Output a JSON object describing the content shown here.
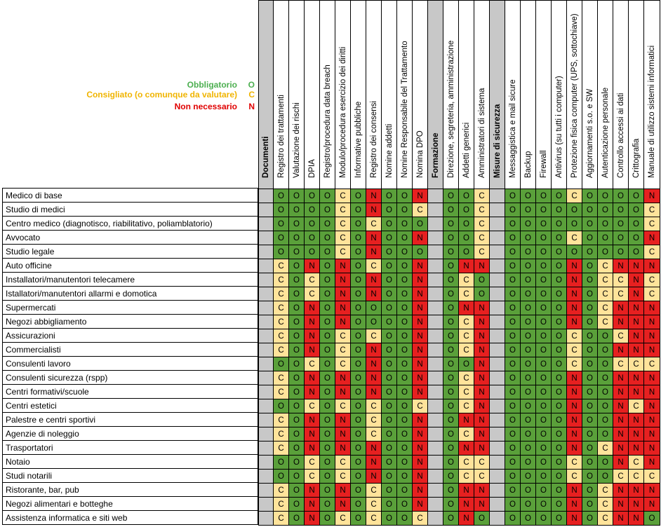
{
  "legend": [
    {
      "text": "Obbligatorio",
      "code": "O",
      "color": "#4caf50"
    },
    {
      "text": "Consigliato (o comunque da valutare)",
      "code": "C",
      "color": "#f0b400"
    },
    {
      "text": "Non necessario",
      "code": "N",
      "color": "#e00000"
    }
  ],
  "colors": {
    "O": "#5aa03a",
    "C": "#ffe39a",
    "N": "#e62020",
    "section": "#c8c8c8"
  },
  "columns": [
    {
      "label": "Documenti",
      "section": true
    },
    {
      "label": "Registro dei trattamenti"
    },
    {
      "label": "Valutazione dei rischi"
    },
    {
      "label": "DPIA"
    },
    {
      "label": "Registro/procedura data breach"
    },
    {
      "label": "Modulo/procedura esercizio dei diritti"
    },
    {
      "label": "Informative pubbliche"
    },
    {
      "label": "Registro dei consensi"
    },
    {
      "label": "Nomine addetti"
    },
    {
      "label": "Nomine Responsabile del Trattamento"
    },
    {
      "label": "Nomina DPO"
    },
    {
      "label": "Formazione",
      "section": true
    },
    {
      "label": "Direzione, segreteria, amministrazione"
    },
    {
      "label": "Addetti generici"
    },
    {
      "label": "Amministratori di sistema"
    },
    {
      "label": "Misure di sicurezza",
      "section": true
    },
    {
      "label": "Messaggistica e mail sicure"
    },
    {
      "label": "Backup"
    },
    {
      "label": "Firewall"
    },
    {
      "label": "Antivirus (su tutti i computer)"
    },
    {
      "label": "Protezione fisica computer (UPS, sottochiave)"
    },
    {
      "label": "Aggiornamenti s.o. e SW"
    },
    {
      "label": "Autenticazione personale"
    },
    {
      "label": "Controllo accessi ai dati"
    },
    {
      "label": "Crittografia"
    },
    {
      "label": "Manuale di utilizzo sistemi informatici"
    }
  ],
  "rows": [
    {
      "label": "Medico di base",
      "values": [
        "",
        "O",
        "O",
        "O",
        "O",
        "C",
        "O",
        "N",
        "O",
        "O",
        "N",
        "",
        "O",
        "O",
        "C",
        "",
        "O",
        "O",
        "O",
        "O",
        "C",
        "O",
        "O",
        "O",
        "O",
        "N"
      ]
    },
    {
      "label": "Studio di medici",
      "values": [
        "",
        "O",
        "O",
        "O",
        "O",
        "C",
        "O",
        "N",
        "O",
        "O",
        "C",
        "",
        "O",
        "O",
        "C",
        "",
        "O",
        "O",
        "O",
        "O",
        "O",
        "O",
        "O",
        "O",
        "O",
        "C"
      ]
    },
    {
      "label": "Centro medico (diagnotisco, riabilitativo, poliamblatorio)",
      "values": [
        "",
        "O",
        "O",
        "O",
        "O",
        "C",
        "O",
        "C",
        "O",
        "O",
        "O",
        "",
        "O",
        "O",
        "C",
        "",
        "O",
        "O",
        "O",
        "O",
        "O",
        "O",
        "O",
        "O",
        "O",
        "C"
      ]
    },
    {
      "label": "Avvocato",
      "values": [
        "",
        "O",
        "O",
        "O",
        "O",
        "C",
        "O",
        "N",
        "O",
        "O",
        "N",
        "",
        "O",
        "O",
        "C",
        "",
        "O",
        "O",
        "O",
        "O",
        "C",
        "O",
        "O",
        "O",
        "O",
        "N"
      ]
    },
    {
      "label": "Studio legale",
      "values": [
        "",
        "O",
        "O",
        "O",
        "O",
        "C",
        "O",
        "N",
        "O",
        "O",
        "O",
        "",
        "O",
        "O",
        "C",
        "",
        "O",
        "O",
        "O",
        "O",
        "O",
        "O",
        "O",
        "O",
        "O",
        "C"
      ]
    },
    {
      "label": "Auto officine",
      "values": [
        "",
        "C",
        "O",
        "N",
        "O",
        "N",
        "O",
        "C",
        "O",
        "O",
        "N",
        "",
        "O",
        "N",
        "N",
        "",
        "O",
        "O",
        "O",
        "O",
        "N",
        "O",
        "C",
        "N",
        "N",
        "N"
      ]
    },
    {
      "label": "Installatori/manutentori telecamere",
      "values": [
        "",
        "C",
        "O",
        "C",
        "O",
        "N",
        "O",
        "N",
        "O",
        "O",
        "N",
        "",
        "O",
        "C",
        "O",
        "",
        "O",
        "O",
        "O",
        "O",
        "N",
        "O",
        "C",
        "C",
        "N",
        "C"
      ]
    },
    {
      "label": "Istallatori/manutentori allarmi e domotica",
      "values": [
        "",
        "C",
        "O",
        "C",
        "O",
        "N",
        "O",
        "N",
        "O",
        "O",
        "N",
        "",
        "O",
        "C",
        "O",
        "",
        "O",
        "O",
        "O",
        "O",
        "N",
        "O",
        "C",
        "C",
        "N",
        "C"
      ]
    },
    {
      "label": "Supermercati",
      "values": [
        "",
        "C",
        "O",
        "N",
        "O",
        "N",
        "O",
        "O",
        "O",
        "O",
        "N",
        "",
        "O",
        "N",
        "N",
        "",
        "O",
        "O",
        "O",
        "O",
        "N",
        "O",
        "C",
        "N",
        "N",
        "N"
      ]
    },
    {
      "label": "Negozi abbigliamento",
      "values": [
        "",
        "C",
        "O",
        "N",
        "O",
        "N",
        "O",
        "O",
        "O",
        "O",
        "N",
        "",
        "O",
        "C",
        "N",
        "",
        "O",
        "O",
        "O",
        "O",
        "N",
        "O",
        "C",
        "N",
        "N",
        "N"
      ]
    },
    {
      "label": "Assicurazioni",
      "values": [
        "",
        "C",
        "O",
        "N",
        "O",
        "C",
        "O",
        "C",
        "O",
        "O",
        "N",
        "",
        "O",
        "C",
        "N",
        "",
        "O",
        "O",
        "O",
        "O",
        "C",
        "O",
        "O",
        "C",
        "N",
        "N"
      ]
    },
    {
      "label": "Commercialisti",
      "values": [
        "",
        "C",
        "O",
        "N",
        "O",
        "C",
        "O",
        "N",
        "O",
        "O",
        "N",
        "",
        "O",
        "C",
        "N",
        "",
        "O",
        "O",
        "O",
        "O",
        "C",
        "O",
        "O",
        "N",
        "N",
        "N"
      ]
    },
    {
      "label": "Consulenti lavoro",
      "values": [
        "",
        "O",
        "O",
        "C",
        "O",
        "C",
        "O",
        "N",
        "O",
        "O",
        "N",
        "",
        "O",
        "O",
        "N",
        "",
        "O",
        "O",
        "O",
        "O",
        "C",
        "O",
        "O",
        "C",
        "C",
        "C"
      ]
    },
    {
      "label": "Consulenti sicurezza (rspp)",
      "values": [
        "",
        "C",
        "O",
        "N",
        "O",
        "N",
        "O",
        "N",
        "O",
        "O",
        "N",
        "",
        "O",
        "C",
        "N",
        "",
        "O",
        "O",
        "O",
        "O",
        "N",
        "O",
        "O",
        "N",
        "N",
        "N"
      ]
    },
    {
      "label": "Centri formativi/scuole",
      "values": [
        "",
        "C",
        "O",
        "N",
        "O",
        "N",
        "O",
        "N",
        "O",
        "O",
        "N",
        "",
        "O",
        "C",
        "N",
        "",
        "O",
        "O",
        "O",
        "O",
        "N",
        "O",
        "O",
        "N",
        "N",
        "N"
      ]
    },
    {
      "label": "Centri estetici",
      "values": [
        "",
        "O",
        "O",
        "C",
        "O",
        "C",
        "O",
        "C",
        "O",
        "O",
        "C",
        "",
        "O",
        "C",
        "N",
        "",
        "O",
        "O",
        "O",
        "O",
        "N",
        "O",
        "O",
        "N",
        "C",
        "N"
      ]
    },
    {
      "label": "Palestre e centri sportivi",
      "values": [
        "",
        "C",
        "O",
        "N",
        "O",
        "N",
        "O",
        "C",
        "O",
        "O",
        "N",
        "",
        "O",
        "N",
        "N",
        "",
        "O",
        "O",
        "O",
        "O",
        "N",
        "O",
        "O",
        "N",
        "N",
        "N"
      ]
    },
    {
      "label": "Agenzie di noleggio",
      "values": [
        "",
        "C",
        "O",
        "N",
        "O",
        "N",
        "O",
        "C",
        "O",
        "O",
        "N",
        "",
        "O",
        "C",
        "N",
        "",
        "O",
        "O",
        "O",
        "O",
        "N",
        "O",
        "O",
        "N",
        "N",
        "N"
      ]
    },
    {
      "label": "Trasportatori",
      "values": [
        "",
        "C",
        "O",
        "N",
        "O",
        "N",
        "O",
        "N",
        "O",
        "O",
        "N",
        "",
        "O",
        "N",
        "N",
        "",
        "O",
        "O",
        "O",
        "O",
        "N",
        "O",
        "C",
        "N",
        "N",
        "N"
      ]
    },
    {
      "label": "Notaio",
      "values": [
        "",
        "O",
        "O",
        "C",
        "O",
        "C",
        "O",
        "N",
        "O",
        "O",
        "N",
        "",
        "O",
        "C",
        "C",
        "",
        "O",
        "O",
        "O",
        "O",
        "C",
        "O",
        "O",
        "N",
        "C",
        "N"
      ]
    },
    {
      "label": "Studi notarili",
      "values": [
        "",
        "O",
        "O",
        "C",
        "O",
        "C",
        "O",
        "N",
        "O",
        "O",
        "N",
        "",
        "O",
        "C",
        "C",
        "",
        "O",
        "O",
        "O",
        "O",
        "C",
        "O",
        "O",
        "C",
        "C",
        "C"
      ]
    },
    {
      "label": "Ristorante, bar, pub",
      "values": [
        "",
        "C",
        "O",
        "N",
        "O",
        "N",
        "O",
        "C",
        "O",
        "O",
        "N",
        "",
        "O",
        "N",
        "N",
        "",
        "O",
        "O",
        "O",
        "O",
        "N",
        "O",
        "C",
        "N",
        "N",
        "N"
      ]
    },
    {
      "label": "Negozi alimentari e botteghe",
      "values": [
        "",
        "C",
        "O",
        "N",
        "O",
        "N",
        "O",
        "C",
        "O",
        "O",
        "N",
        "",
        "O",
        "N",
        "N",
        "",
        "O",
        "O",
        "O",
        "O",
        "N",
        "O",
        "C",
        "N",
        "N",
        "N"
      ]
    },
    {
      "label": "Assistenza informatica e siti web",
      "values": [
        "",
        "C",
        "O",
        "N",
        "O",
        "C",
        "O",
        "C",
        "O",
        "O",
        "C",
        "",
        "O",
        "N",
        "O",
        "",
        "O",
        "O",
        "O",
        "O",
        "N",
        "O",
        "C",
        "N",
        "N",
        "O"
      ]
    }
  ]
}
